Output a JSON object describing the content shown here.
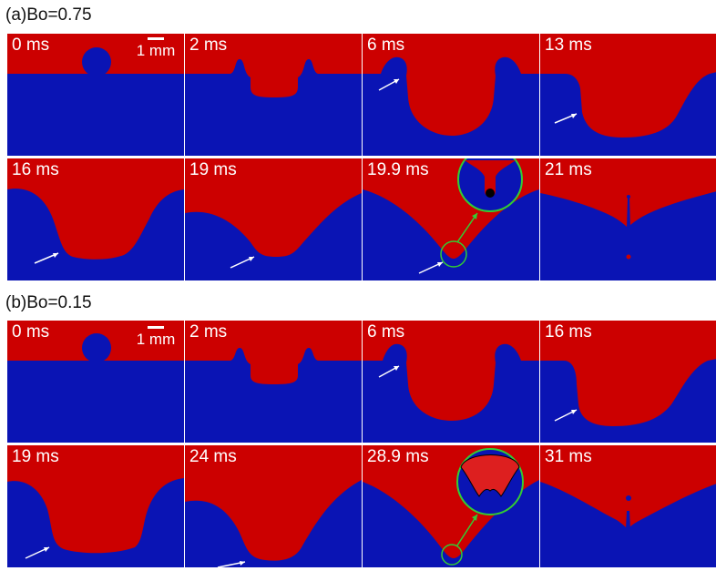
{
  "figure": {
    "sections": [
      {
        "label": "(a)Bo=0.75",
        "scale_label": "1 mm",
        "panels": [
          "0 ms",
          "2 ms",
          "6 ms",
          "13 ms",
          "16 ms",
          "19 ms",
          "19.9 ms",
          "21 ms"
        ]
      },
      {
        "label": "(b)Bo=0.15",
        "scale_label": "1 mm",
        "panels": [
          "0 ms",
          "2 ms",
          "6 ms",
          "16 ms",
          "19 ms",
          "24 ms",
          "28.9 ms",
          "31 ms"
        ]
      }
    ],
    "colors": {
      "upper_fluid": "#cc0000",
      "lower_fluid": "#0a14b4",
      "arrow": "#ffffff",
      "zoom_circle": "#33cc33",
      "divider": "#ffffff"
    }
  }
}
